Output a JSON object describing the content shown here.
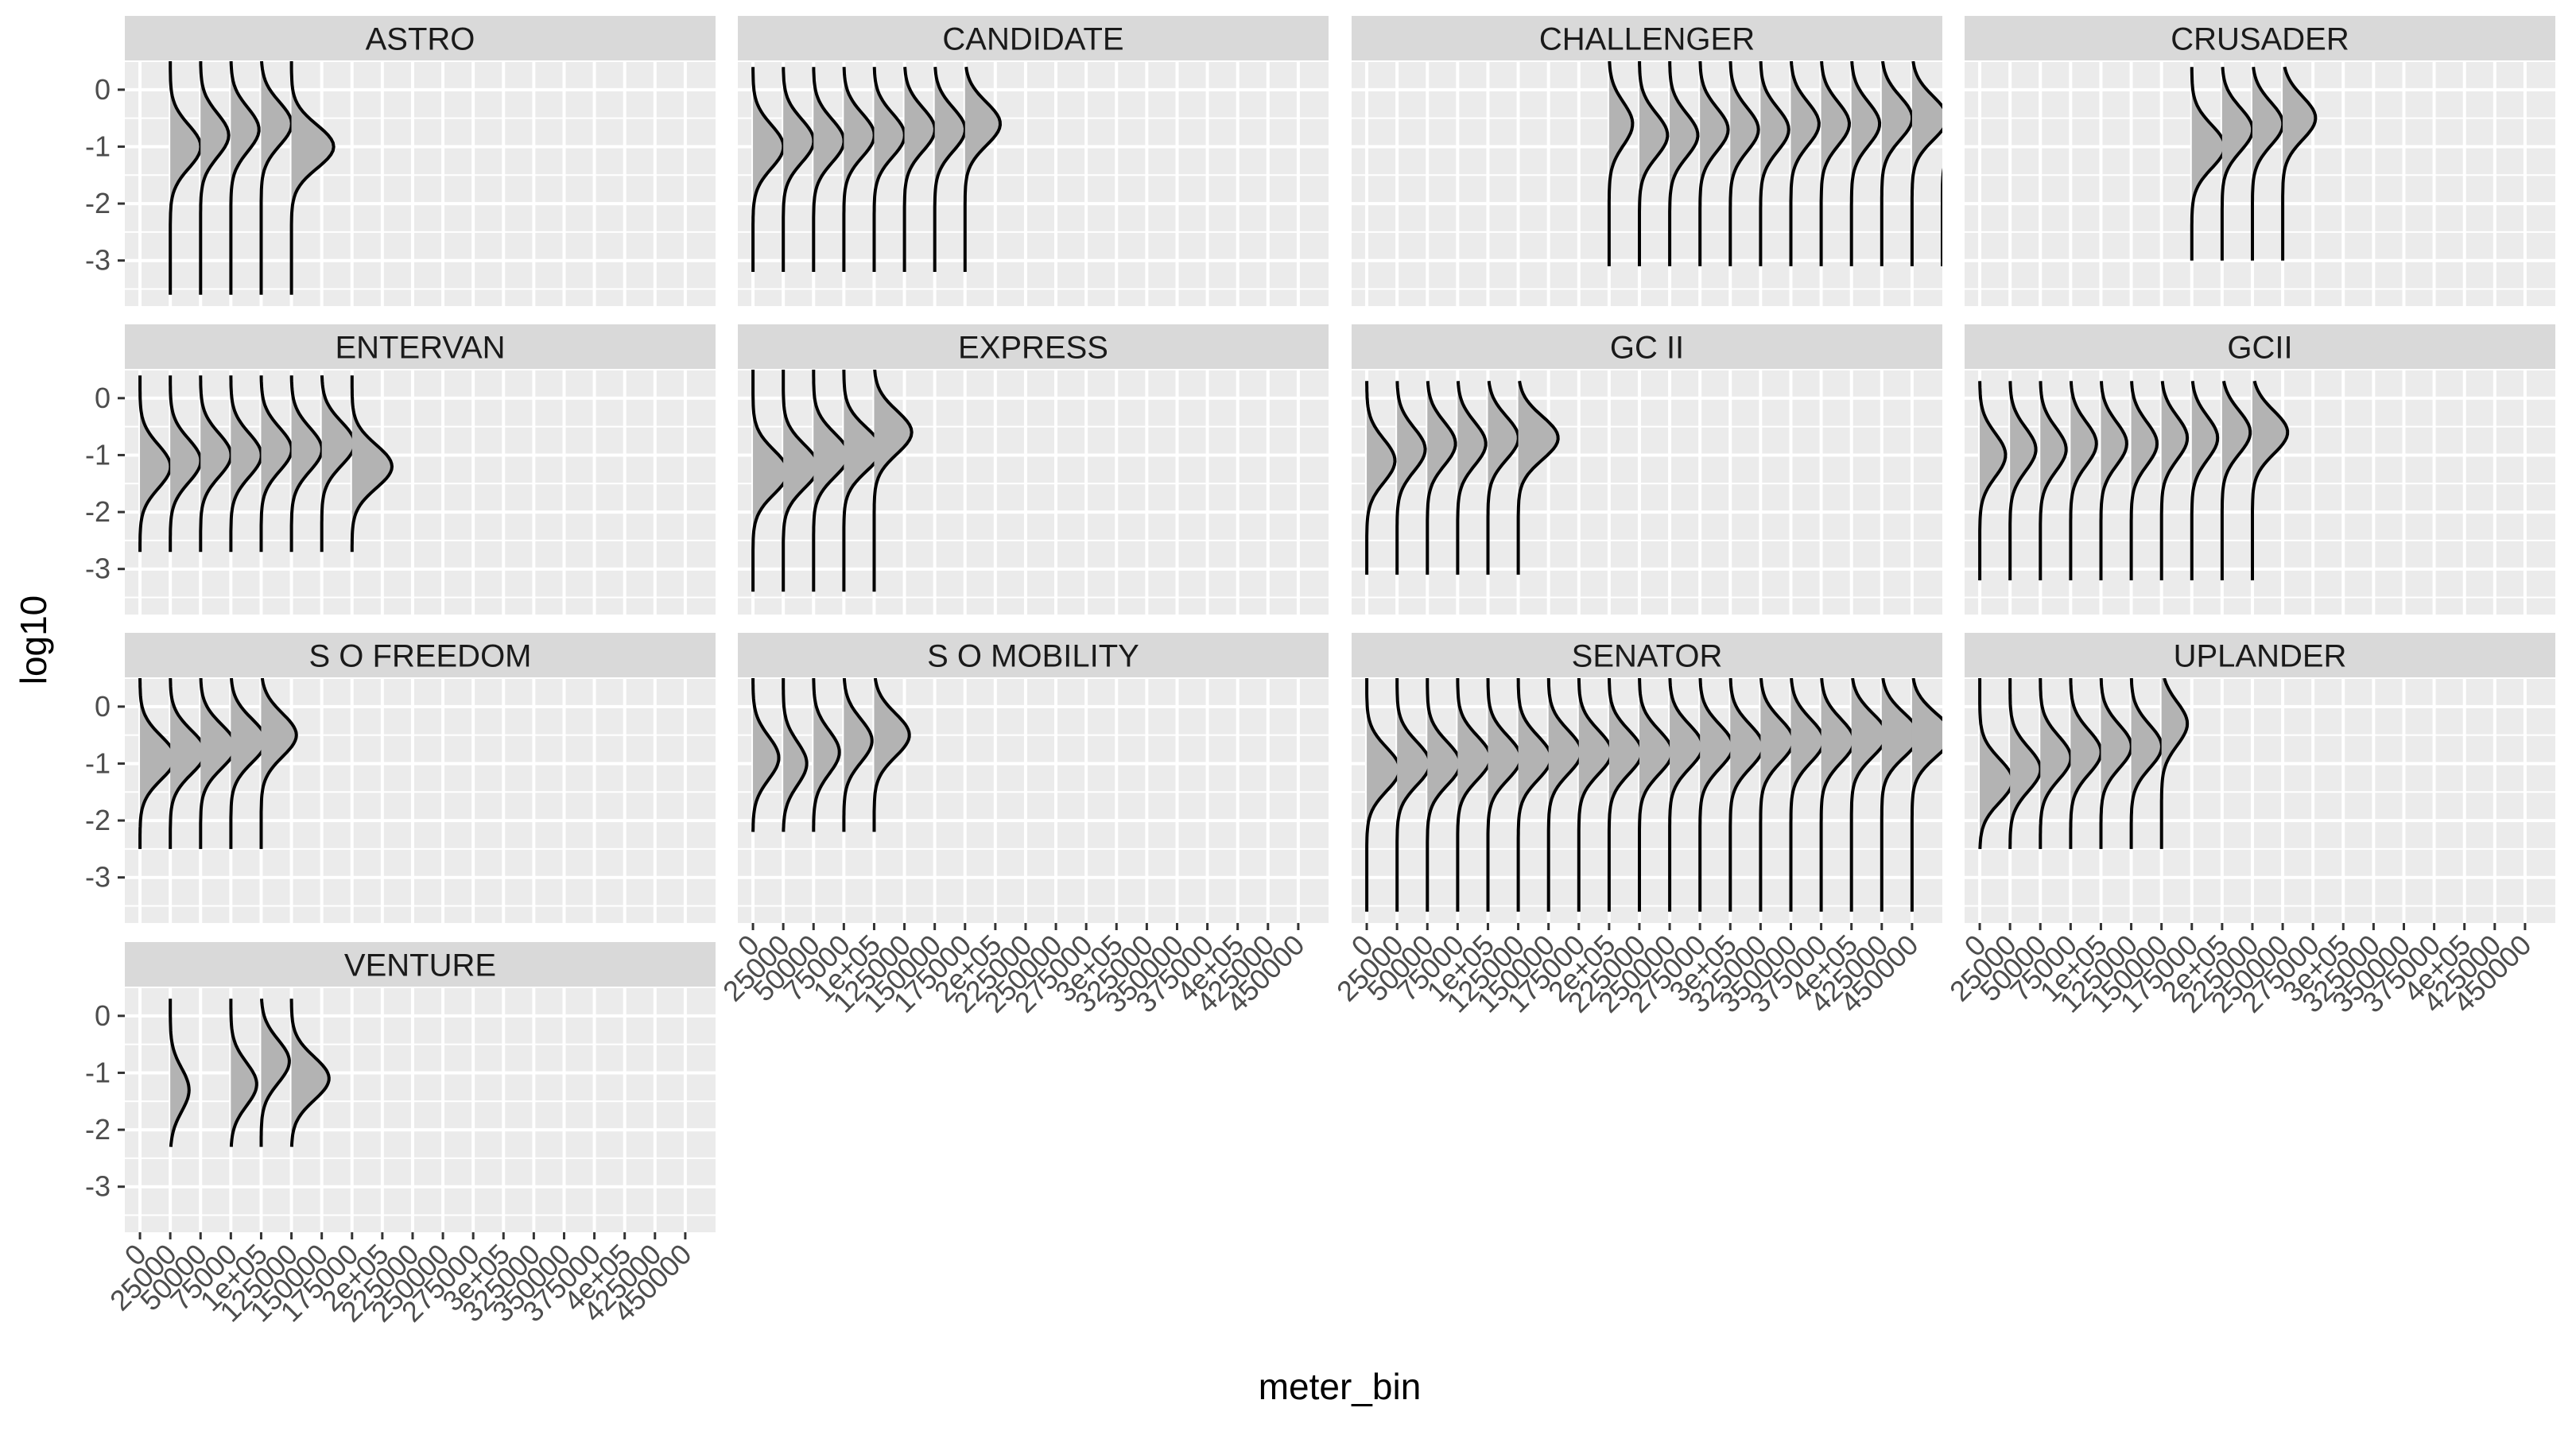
{
  "chart_data": {
    "type": "ridgeline-facets",
    "xlabel": "meter_bin",
    "ylabel": "log10",
    "x_ticks": [
      0,
      25000,
      50000,
      75000,
      100000,
      125000,
      150000,
      175000,
      200000,
      225000,
      250000,
      275000,
      300000,
      325000,
      350000,
      375000,
      400000,
      425000,
      450000
    ],
    "x_tick_labels": [
      "0",
      "25000",
      "50000",
      "75000",
      "1e+05",
      "125000",
      "150000",
      "175000",
      "2e+05",
      "225000",
      "250000",
      "275000",
      "3e+05",
      "325000",
      "350000",
      "375000",
      "4e+05",
      "425000",
      "450000"
    ],
    "y_ticks": [
      0,
      -1,
      -2,
      -3
    ],
    "y_tick_labels": [
      "0",
      "-1",
      "-2",
      "-3"
    ],
    "xlim": [
      -12500,
      475000
    ],
    "ylim": [
      -3.8,
      0.5
    ],
    "grid": true,
    "colors": {
      "panel": "#ebebeb",
      "strip": "#d9d9d9",
      "grid": "#ffffff",
      "fill": "#b3b3b3",
      "line": "#000000"
    },
    "facets": [
      {
        "name": "ASTRO",
        "bins": [
          {
            "x": 25000,
            "ymin": -3.6,
            "ymax": 0.5,
            "peak": -1.0,
            "h": 0.65
          },
          {
            "x": 50000,
            "ymin": -3.6,
            "ymax": 0.5,
            "peak": -0.8,
            "h": 0.6
          },
          {
            "x": 75000,
            "ymin": -3.6,
            "ymax": 0.5,
            "peak": -0.7,
            "h": 0.6
          },
          {
            "x": 100000,
            "ymin": -3.6,
            "ymax": 0.5,
            "peak": -0.6,
            "h": 0.65
          },
          {
            "x": 125000,
            "ymin": -3.6,
            "ymax": 0.5,
            "peak": -1.0,
            "h": 0.9
          }
        ]
      },
      {
        "name": "CANDIDATE",
        "bins": [
          {
            "x": 0,
            "ymin": -3.2,
            "ymax": 0.4,
            "peak": -1.0,
            "h": 0.65
          },
          {
            "x": 25000,
            "ymin": -3.2,
            "ymax": 0.4,
            "peak": -0.9,
            "h": 0.65
          },
          {
            "x": 50000,
            "ymin": -3.2,
            "ymax": 0.4,
            "peak": -0.9,
            "h": 0.65
          },
          {
            "x": 75000,
            "ymin": -3.2,
            "ymax": 0.4,
            "peak": -0.8,
            "h": 0.65
          },
          {
            "x": 100000,
            "ymin": -3.2,
            "ymax": 0.4,
            "peak": -0.8,
            "h": 0.65
          },
          {
            "x": 125000,
            "ymin": -3.2,
            "ymax": 0.4,
            "peak": -0.7,
            "h": 0.65
          },
          {
            "x": 150000,
            "ymin": -3.2,
            "ymax": 0.4,
            "peak": -0.7,
            "h": 0.65
          },
          {
            "x": 175000,
            "ymin": -3.2,
            "ymax": 0.4,
            "peak": -0.6,
            "h": 0.75
          }
        ]
      },
      {
        "name": "CHALLENGER",
        "bins": [
          {
            "x": 200000,
            "ymin": -3.1,
            "ymax": 0.5,
            "peak": -0.6,
            "h": 0.5
          },
          {
            "x": 225000,
            "ymin": -3.1,
            "ymax": 0.5,
            "peak": -0.8,
            "h": 0.6
          },
          {
            "x": 250000,
            "ymin": -3.1,
            "ymax": 0.5,
            "peak": -0.8,
            "h": 0.6
          },
          {
            "x": 275000,
            "ymin": -3.1,
            "ymax": 0.5,
            "peak": -0.7,
            "h": 0.6
          },
          {
            "x": 300000,
            "ymin": -3.1,
            "ymax": 0.5,
            "peak": -0.7,
            "h": 0.6
          },
          {
            "x": 325000,
            "ymin": -3.1,
            "ymax": 0.5,
            "peak": -0.7,
            "h": 0.6
          },
          {
            "x": 350000,
            "ymin": -3.1,
            "ymax": 0.5,
            "peak": -0.6,
            "h": 0.6
          },
          {
            "x": 375000,
            "ymin": -3.1,
            "ymax": 0.5,
            "peak": -0.6,
            "h": 0.6
          },
          {
            "x": 400000,
            "ymin": -3.1,
            "ymax": 0.5,
            "peak": -0.6,
            "h": 0.6
          },
          {
            "x": 425000,
            "ymin": -3.1,
            "ymax": 0.5,
            "peak": -0.5,
            "h": 0.65
          },
          {
            "x": 450000,
            "ymin": -3.1,
            "ymax": 0.5,
            "peak": -0.5,
            "h": 0.75
          },
          {
            "x": 475000,
            "ymin": -3.1,
            "ymax": 0.5,
            "peak": -0.4,
            "h": 0.9
          }
        ]
      },
      {
        "name": "CRUSADER",
        "bins": [
          {
            "x": 175000,
            "ymin": -3.0,
            "ymax": 0.4,
            "peak": -1.0,
            "h": 0.7
          },
          {
            "x": 200000,
            "ymin": -3.0,
            "ymax": 0.4,
            "peak": -0.7,
            "h": 0.65
          },
          {
            "x": 225000,
            "ymin": -3.0,
            "ymax": 0.4,
            "peak": -0.6,
            "h": 0.65
          },
          {
            "x": 250000,
            "ymin": -3.0,
            "ymax": 0.4,
            "peak": -0.5,
            "h": 0.7
          }
        ]
      },
      {
        "name": "ENTERVAN",
        "bins": [
          {
            "x": 0,
            "ymin": -2.7,
            "ymax": 0.4,
            "peak": -1.2,
            "h": 0.65
          },
          {
            "x": 25000,
            "ymin": -2.7,
            "ymax": 0.4,
            "peak": -1.1,
            "h": 0.65
          },
          {
            "x": 50000,
            "ymin": -2.7,
            "ymax": 0.4,
            "peak": -1.0,
            "h": 0.65
          },
          {
            "x": 75000,
            "ymin": -2.7,
            "ymax": 0.4,
            "peak": -1.0,
            "h": 0.65
          },
          {
            "x": 100000,
            "ymin": -2.7,
            "ymax": 0.4,
            "peak": -0.9,
            "h": 0.65
          },
          {
            "x": 125000,
            "ymin": -2.7,
            "ymax": 0.4,
            "peak": -0.9,
            "h": 0.65
          },
          {
            "x": 150000,
            "ymin": -2.7,
            "ymax": 0.4,
            "peak": -0.8,
            "h": 0.7
          },
          {
            "x": 175000,
            "ymin": -2.7,
            "ymax": 0.4,
            "peak": -1.2,
            "h": 0.85
          }
        ]
      },
      {
        "name": "EXPRESS",
        "bins": [
          {
            "x": 0,
            "ymin": -3.4,
            "ymax": 0.6,
            "peak": -1.3,
            "h": 0.75
          },
          {
            "x": 25000,
            "ymin": -3.4,
            "ymax": 0.6,
            "peak": -1.2,
            "h": 0.75
          },
          {
            "x": 50000,
            "ymin": -3.4,
            "ymax": 0.6,
            "peak": -1.0,
            "h": 0.75
          },
          {
            "x": 75000,
            "ymin": -3.4,
            "ymax": 0.6,
            "peak": -0.9,
            "h": 0.8
          },
          {
            "x": 100000,
            "ymin": -3.4,
            "ymax": 0.6,
            "peak": -0.6,
            "h": 0.8
          }
        ]
      },
      {
        "name": "GC II",
        "bins": [
          {
            "x": 0,
            "ymin": -3.1,
            "ymax": 0.3,
            "peak": -1.1,
            "h": 0.6
          },
          {
            "x": 25000,
            "ymin": -3.1,
            "ymax": 0.3,
            "peak": -0.9,
            "h": 0.6
          },
          {
            "x": 50000,
            "ymin": -3.1,
            "ymax": 0.3,
            "peak": -0.8,
            "h": 0.6
          },
          {
            "x": 75000,
            "ymin": -3.1,
            "ymax": 0.3,
            "peak": -0.8,
            "h": 0.6
          },
          {
            "x": 100000,
            "ymin": -3.1,
            "ymax": 0.3,
            "peak": -0.7,
            "h": 0.65
          },
          {
            "x": 125000,
            "ymin": -3.1,
            "ymax": 0.3,
            "peak": -0.7,
            "h": 0.85
          }
        ]
      },
      {
        "name": "GCII",
        "bins": [
          {
            "x": 0,
            "ymin": -3.2,
            "ymax": 0.3,
            "peak": -1.0,
            "h": 0.55
          },
          {
            "x": 25000,
            "ymin": -3.2,
            "ymax": 0.3,
            "peak": -0.9,
            "h": 0.55
          },
          {
            "x": 50000,
            "ymin": -3.2,
            "ymax": 0.3,
            "peak": -0.9,
            "h": 0.55
          },
          {
            "x": 75000,
            "ymin": -3.2,
            "ymax": 0.3,
            "peak": -0.8,
            "h": 0.55
          },
          {
            "x": 100000,
            "ymin": -3.2,
            "ymax": 0.3,
            "peak": -0.8,
            "h": 0.55
          },
          {
            "x": 125000,
            "ymin": -3.2,
            "ymax": 0.3,
            "peak": -0.8,
            "h": 0.55
          },
          {
            "x": 150000,
            "ymin": -3.2,
            "ymax": 0.3,
            "peak": -0.7,
            "h": 0.55
          },
          {
            "x": 175000,
            "ymin": -3.2,
            "ymax": 0.3,
            "peak": -0.7,
            "h": 0.55
          },
          {
            "x": 200000,
            "ymin": -3.2,
            "ymax": 0.3,
            "peak": -0.6,
            "h": 0.6
          },
          {
            "x": 225000,
            "ymin": -3.2,
            "ymax": 0.3,
            "peak": -0.6,
            "h": 0.75
          }
        ]
      },
      {
        "name": "S O FREEDOM",
        "bins": [
          {
            "x": 0,
            "ymin": -2.5,
            "ymax": 0.5,
            "peak": -0.9,
            "h": 0.75
          },
          {
            "x": 25000,
            "ymin": -2.5,
            "ymax": 0.5,
            "peak": -0.8,
            "h": 0.75
          },
          {
            "x": 50000,
            "ymin": -2.5,
            "ymax": 0.5,
            "peak": -0.7,
            "h": 0.75
          },
          {
            "x": 75000,
            "ymin": -2.5,
            "ymax": 0.5,
            "peak": -0.6,
            "h": 0.75
          },
          {
            "x": 100000,
            "ymin": -2.5,
            "ymax": 0.5,
            "peak": -0.5,
            "h": 0.75
          }
        ]
      },
      {
        "name": "S O MOBILITY",
        "bins": [
          {
            "x": 0,
            "ymin": -2.2,
            "ymax": 0.5,
            "peak": -0.9,
            "h": 0.55
          },
          {
            "x": 25000,
            "ymin": -2.2,
            "ymax": 0.5,
            "peak": -1.0,
            "h": 0.5
          },
          {
            "x": 50000,
            "ymin": -2.2,
            "ymax": 0.5,
            "peak": -0.8,
            "h": 0.55
          },
          {
            "x": 75000,
            "ymin": -2.2,
            "ymax": 0.5,
            "peak": -0.6,
            "h": 0.6
          },
          {
            "x": 100000,
            "ymin": -2.2,
            "ymax": 0.5,
            "peak": -0.5,
            "h": 0.75
          }
        ]
      },
      {
        "name": "SENATOR",
        "bins": [
          {
            "x": 0,
            "ymin": -3.6,
            "ymax": 0.5,
            "peak": -1.1,
            "h": 0.7
          },
          {
            "x": 25000,
            "ymin": -3.6,
            "ymax": 0.5,
            "peak": -1.0,
            "h": 0.7
          },
          {
            "x": 50000,
            "ymin": -3.6,
            "ymax": 0.5,
            "peak": -1.0,
            "h": 0.7
          },
          {
            "x": 75000,
            "ymin": -3.6,
            "ymax": 0.5,
            "peak": -0.9,
            "h": 0.7
          },
          {
            "x": 100000,
            "ymin": -3.6,
            "ymax": 0.5,
            "peak": -0.9,
            "h": 0.7
          },
          {
            "x": 125000,
            "ymin": -3.6,
            "ymax": 0.5,
            "peak": -0.9,
            "h": 0.7
          },
          {
            "x": 150000,
            "ymin": -3.6,
            "ymax": 0.5,
            "peak": -0.8,
            "h": 0.7
          },
          {
            "x": 175000,
            "ymin": -3.6,
            "ymax": 0.5,
            "peak": -0.8,
            "h": 0.7
          },
          {
            "x": 200000,
            "ymin": -3.6,
            "ymax": 0.5,
            "peak": -0.8,
            "h": 0.7
          },
          {
            "x": 225000,
            "ymin": -3.6,
            "ymax": 0.5,
            "peak": -0.8,
            "h": 0.7
          },
          {
            "x": 250000,
            "ymin": -3.6,
            "ymax": 0.5,
            "peak": -0.7,
            "h": 0.7
          },
          {
            "x": 275000,
            "ymin": -3.6,
            "ymax": 0.5,
            "peak": -0.7,
            "h": 0.7
          },
          {
            "x": 300000,
            "ymin": -3.6,
            "ymax": 0.5,
            "peak": -0.7,
            "h": 0.7
          },
          {
            "x": 325000,
            "ymin": -3.6,
            "ymax": 0.5,
            "peak": -0.6,
            "h": 0.7
          },
          {
            "x": 350000,
            "ymin": -3.6,
            "ymax": 0.5,
            "peak": -0.6,
            "h": 0.7
          },
          {
            "x": 375000,
            "ymin": -3.6,
            "ymax": 0.5,
            "peak": -0.6,
            "h": 0.7
          },
          {
            "x": 400000,
            "ymin": -3.6,
            "ymax": 0.5,
            "peak": -0.5,
            "h": 0.75
          },
          {
            "x": 425000,
            "ymin": -3.6,
            "ymax": 0.5,
            "peak": -0.5,
            "h": 0.8
          },
          {
            "x": 450000,
            "ymin": -3.6,
            "ymax": 0.5,
            "peak": -0.5,
            "h": 0.85
          }
        ]
      },
      {
        "name": "UPLANDER",
        "bins": [
          {
            "x": 0,
            "ymin": -2.5,
            "ymax": 0.5,
            "peak": -1.3,
            "h": 0.7
          },
          {
            "x": 25000,
            "ymin": -2.5,
            "ymax": 0.5,
            "peak": -1.1,
            "h": 0.65
          },
          {
            "x": 50000,
            "ymin": -2.5,
            "ymax": 0.5,
            "peak": -0.9,
            "h": 0.65
          },
          {
            "x": 75000,
            "ymin": -2.5,
            "ymax": 0.5,
            "peak": -0.8,
            "h": 0.65
          },
          {
            "x": 100000,
            "ymin": -2.5,
            "ymax": 0.5,
            "peak": -0.7,
            "h": 0.65
          },
          {
            "x": 125000,
            "ymin": -2.5,
            "ymax": 0.5,
            "peak": -0.7,
            "h": 0.65
          },
          {
            "x": 150000,
            "ymin": -2.5,
            "ymax": 0.5,
            "peak": -0.3,
            "h": 0.55
          }
        ]
      },
      {
        "name": "VENTURE",
        "bins": [
          {
            "x": 25000,
            "ymin": -2.3,
            "ymax": 0.3,
            "peak": -1.3,
            "h": 0.4
          },
          {
            "x": 75000,
            "ymin": -2.3,
            "ymax": 0.3,
            "peak": -1.2,
            "h": 0.55
          },
          {
            "x": 100000,
            "ymin": -2.3,
            "ymax": 0.3,
            "peak": -0.8,
            "h": 0.6
          },
          {
            "x": 125000,
            "ymin": -2.3,
            "ymax": 0.3,
            "peak": -1.1,
            "h": 0.8
          }
        ]
      }
    ]
  }
}
